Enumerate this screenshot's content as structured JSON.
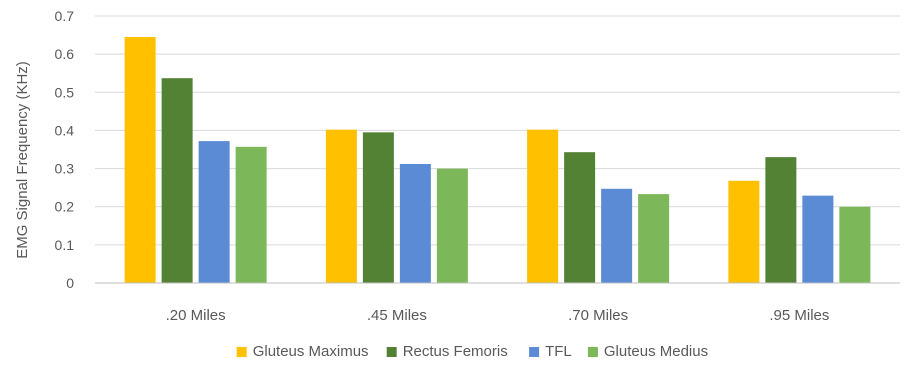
{
  "chart_data": {
    "type": "bar",
    "title": "",
    "xlabel": "",
    "ylabel": "EMG Signal Frequency (KHz)",
    "ylim": [
      0,
      0.7
    ],
    "yticks": [
      "0",
      "0.1",
      "0.2",
      "0.3",
      "0.4",
      "0.5",
      "0.6",
      "0.7"
    ],
    "grid": true,
    "legend_position": "bottom",
    "categories": [
      ".20 Miles",
      ".45 Miles",
      ".70 Miles",
      ".95 Miles"
    ],
    "series": [
      {
        "name": "Gluteus Maximus",
        "color": "#FFC000",
        "values": [
          0.645,
          0.402,
          0.402,
          0.268
        ]
      },
      {
        "name": "Rectus Femoris",
        "color": "#548235",
        "values": [
          0.537,
          0.395,
          0.343,
          0.33
        ]
      },
      {
        "name": "TFL",
        "color": "#5B8BD4",
        "values": [
          0.372,
          0.312,
          0.247,
          0.229
        ]
      },
      {
        "name": "Gluteus Medius",
        "color": "#7CB85A",
        "values": [
          0.357,
          0.3,
          0.233,
          0.2
        ]
      }
    ]
  }
}
